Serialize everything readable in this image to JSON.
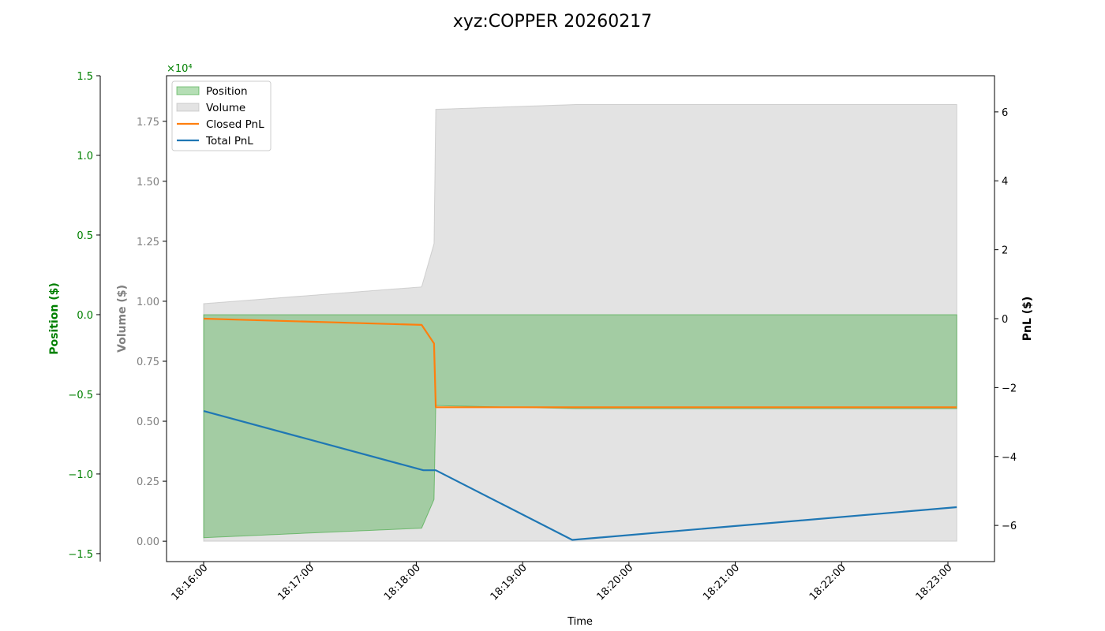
{
  "chart_data": {
    "type": "area",
    "title": "xyz:COPPER 20260217",
    "xlabel": "Time",
    "x_ticks": [
      "18:16:00",
      "18:17:00",
      "18:18:00",
      "18:19:00",
      "18:20:00",
      "18:21:00",
      "18:22:00",
      "18:23:00"
    ],
    "position_axis": {
      "label": "Position ($)",
      "color": "#008000",
      "ylim": [
        -1.55,
        1.5
      ],
      "ticks": [
        "1.5",
        "1.0",
        "0.5",
        "0.0",
        "−0.5",
        "−1.0",
        "−1.5"
      ],
      "tick_values": [
        1.5,
        1.0,
        0.5,
        0.0,
        -0.5,
        -1.0,
        -1.5
      ],
      "multiplier": "×10⁴"
    },
    "volume_axis": {
      "label": "Volume ($)",
      "color": "#808080",
      "ylim": [
        -0.085,
        1.94
      ],
      "ticks": [
        "1.75",
        "1.50",
        "1.25",
        "1.00",
        "0.75",
        "0.50",
        "0.25",
        "0.00"
      ],
      "tick_values": [
        1.75,
        1.5,
        1.25,
        1.0,
        0.75,
        0.5,
        0.25,
        0.0
      ]
    },
    "pnl_axis": {
      "label": "PnL ($)",
      "color": "#000000",
      "ylim": [
        -7.05,
        7.05
      ],
      "ticks": [
        "6",
        "4",
        "2",
        "0",
        "−2",
        "−4",
        "−6"
      ],
      "tick_values": [
        6,
        4,
        2,
        0,
        -2,
        -4,
        -6
      ]
    },
    "legend": {
      "placement": "upper-left",
      "entries": [
        {
          "label": "Position",
          "kind": "patch",
          "color": "#2ca02c"
        },
        {
          "label": "Volume",
          "kind": "patch",
          "color": "#b0b0b0"
        },
        {
          "label": "Closed PnL",
          "kind": "line",
          "color": "#ff7f0e"
        },
        {
          "label": "Total PnL",
          "kind": "line",
          "color": "#1f77b4"
        }
      ]
    },
    "series": [
      {
        "name": "Position",
        "axis": "position",
        "style": "area",
        "color": "#2ca02c",
        "points": [
          [
            "18:16:00",
            -1.4
          ],
          [
            "18:18:03",
            -1.34
          ],
          [
            "18:18:10",
            -1.16
          ],
          [
            "18:18:11",
            -0.57
          ],
          [
            "18:19:30",
            -0.59
          ],
          [
            "18:23:05",
            -0.59
          ]
        ]
      },
      {
        "name": "Volume",
        "axis": "volume",
        "style": "area",
        "color": "#b0b0b0",
        "points": [
          [
            "18:16:00",
            0.99
          ],
          [
            "18:18:03",
            1.06
          ],
          [
            "18:18:10",
            1.24
          ],
          [
            "18:18:11",
            1.8
          ],
          [
            "18:19:30",
            1.82
          ],
          [
            "18:23:05",
            1.82
          ]
        ]
      },
      {
        "name": "Closed PnL",
        "axis": "pnl",
        "style": "line",
        "color": "#ff7f0e",
        "points": [
          [
            "18:16:00",
            0.0
          ],
          [
            "18:16:20",
            -0.03
          ],
          [
            "18:18:03",
            -0.18
          ],
          [
            "18:18:10",
            -0.72
          ],
          [
            "18:18:11",
            -2.57
          ],
          [
            "18:23:05",
            -2.57
          ]
        ]
      },
      {
        "name": "Total PnL",
        "axis": "pnl",
        "style": "line",
        "color": "#1f77b4",
        "points": [
          [
            "18:16:00",
            -2.68
          ],
          [
            "18:18:04",
            -4.4
          ],
          [
            "18:18:11",
            -4.4
          ],
          [
            "18:19:28",
            -6.42
          ],
          [
            "18:23:05",
            -5.47
          ]
        ]
      }
    ],
    "grid": false
  }
}
